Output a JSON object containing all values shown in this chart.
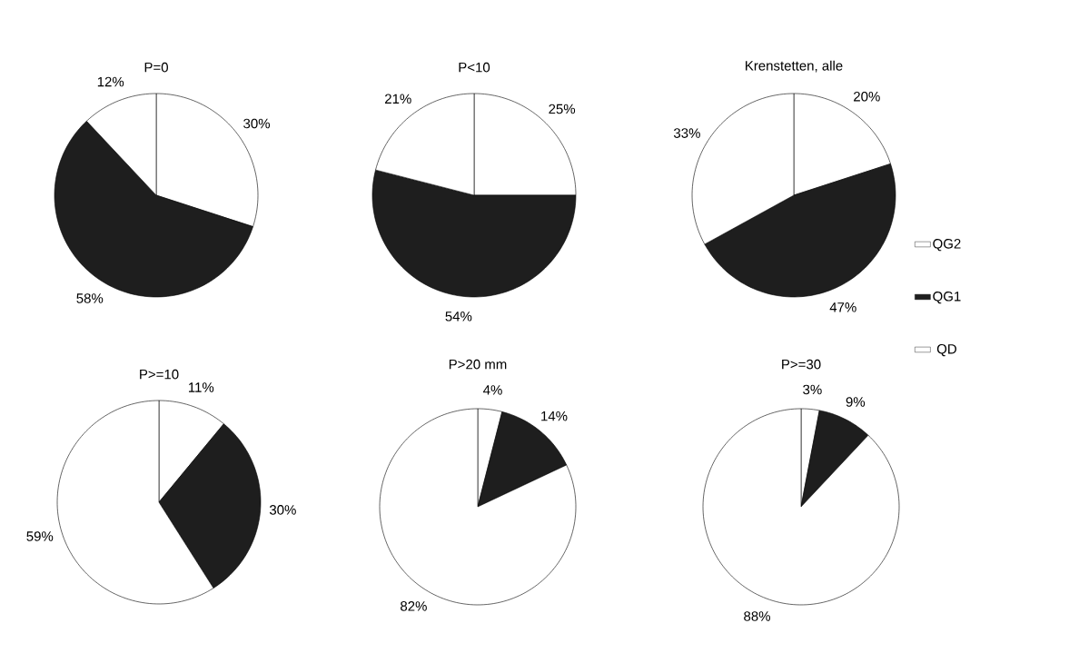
{
  "chart_data": [
    {
      "type": "pie",
      "title": "P=0",
      "categories": [
        null,
        null,
        null
      ],
      "values": [
        30,
        58,
        12
      ],
      "colors": [
        "#ffffff",
        "#1e1e1e",
        "#ffffff"
      ],
      "value_labels": [
        "30%",
        "58%",
        "12%"
      ]
    },
    {
      "type": "pie",
      "title": "P<10",
      "categories": [
        null,
        null,
        null
      ],
      "values": [
        25,
        54,
        21
      ],
      "colors": [
        "#ffffff",
        "#1e1e1e",
        "#ffffff"
      ],
      "value_labels": [
        "25%",
        "54%",
        "21%"
      ]
    },
    {
      "type": "pie",
      "title": "Krenstetten, alle",
      "categories": [
        "QG2",
        "QG1",
        "QD"
      ],
      "values": [
        20,
        47,
        33
      ],
      "colors": [
        "#ffffff",
        "#1e1e1e",
        "#ffffff"
      ],
      "value_labels": [
        "20%",
        "47%",
        "33%"
      ],
      "legend": "right"
    },
    {
      "type": "pie",
      "title": "P>=10",
      "categories": [
        null,
        null,
        null
      ],
      "values": [
        11,
        30,
        59
      ],
      "colors": [
        "#ffffff",
        "#1e1e1e",
        "#ffffff"
      ],
      "value_labels": [
        "11%",
        "30%",
        "59%"
      ]
    },
    {
      "type": "pie",
      "title": "P>20 mm",
      "categories": [
        null,
        null,
        null
      ],
      "values": [
        4,
        14,
        82
      ],
      "colors": [
        "#ffffff",
        "#1e1e1e",
        "#ffffff"
      ],
      "value_labels": [
        "4%",
        "14%",
        "82%"
      ]
    },
    {
      "type": "pie",
      "title": "P>=30",
      "categories": [
        null,
        null,
        null
      ],
      "values": [
        3,
        9,
        88
      ],
      "colors": [
        "#ffffff",
        "#1e1e1e",
        "#ffffff"
      ],
      "value_labels": [
        "3%",
        "9%",
        "88%"
      ]
    }
  ]
}
